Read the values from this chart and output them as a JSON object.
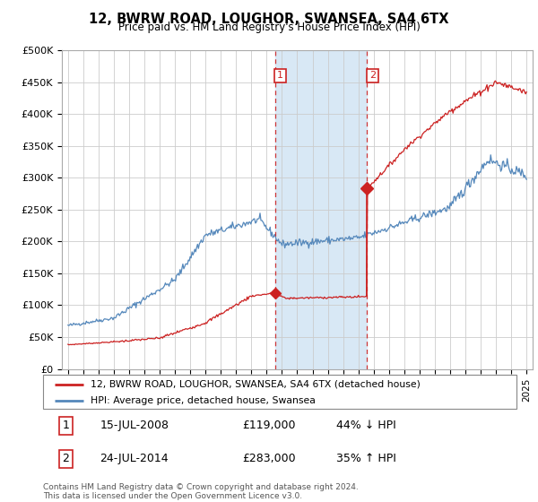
{
  "title": "12, BWRW ROAD, LOUGHOR, SWANSEA, SA4 6TX",
  "subtitle": "Price paid vs. HM Land Registry's House Price Index (HPI)",
  "ylim": [
    0,
    500000
  ],
  "yticks": [
    0,
    50000,
    100000,
    150000,
    200000,
    250000,
    300000,
    350000,
    400000,
    450000,
    500000
  ],
  "ytick_labels": [
    "£0",
    "£50K",
    "£100K",
    "£150K",
    "£200K",
    "£250K",
    "£300K",
    "£350K",
    "£400K",
    "£450K",
    "£500K"
  ],
  "hpi_color": "#5588bb",
  "property_color": "#cc2222",
  "transaction1_x": 2008.54,
  "transaction2_x": 2014.56,
  "transaction1_price": 119000,
  "transaction2_price": 283000,
  "transaction1_date": "15-JUL-2008",
  "transaction2_date": "24-JUL-2014",
  "transaction1_pct": "44% ↓ HPI",
  "transaction2_pct": "35% ↑ HPI",
  "legend_label_property": "12, BWRW ROAD, LOUGHOR, SWANSEA, SA4 6TX (detached house)",
  "legend_label_hpi": "HPI: Average price, detached house, Swansea",
  "footnote": "Contains HM Land Registry data © Crown copyright and database right 2024.\nThis data is licensed under the Open Government Licence v3.0.",
  "highlight_color": "#d8e8f5",
  "xlim_left": 1994.6,
  "xlim_right": 2025.4
}
